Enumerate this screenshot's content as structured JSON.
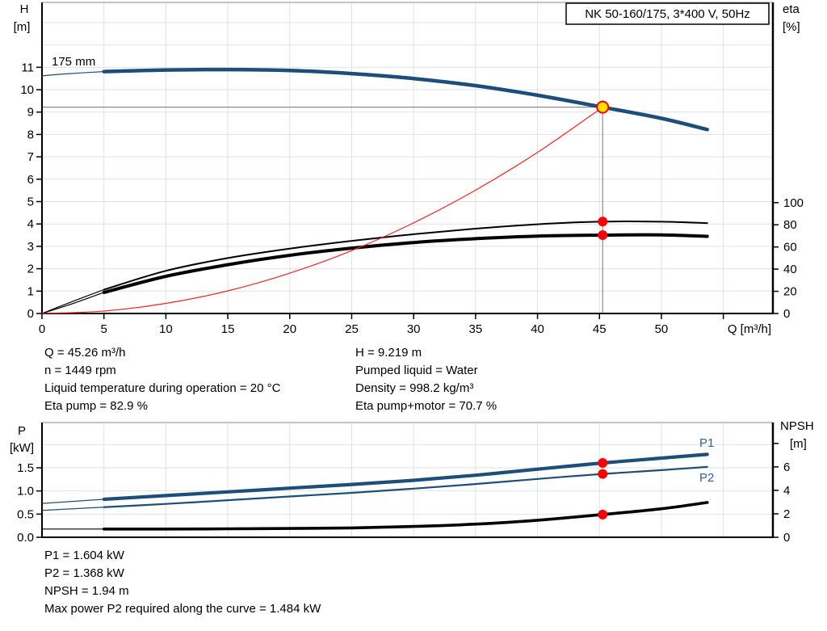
{
  "title_box": "NK 50-160/175, 3*400 V, 50Hz",
  "colors": {
    "blue": "#1c4e7b",
    "black": "#000000",
    "red": "#ff2020",
    "dot_red": "#ff0000",
    "duty_yellow": "#ffe000",
    "duty_gray": "#8c8c8c",
    "grid": "#e2e2e2",
    "axis": "#000000",
    "top_border": "#a0a0a0",
    "label_blue": "#2c5fa5"
  },
  "info": {
    "q": "Q = 45.26 m³/h",
    "n": "n = 1449 rpm",
    "liquid_temp": "Liquid temperature during operation = 20 °C",
    "eta_pump": "Eta pump = 82.9 %",
    "h": "H = 9.219 m",
    "pumped_liquid": "Pumped liquid = Water",
    "density": "Density = 998.2 kg/m³",
    "eta_pump_motor": "Eta pump+motor = 70.7 %",
    "p1": "P1 = 1.604 kW",
    "p2": "P2 = 1.368 kW",
    "npsh": "NPSH = 1.94 m",
    "max_p2": "Max power P2 required along the curve = 1.484 kW"
  },
  "chart_data": [
    {
      "type": "line",
      "title": "NK 50-160/175, 3*400 V, 50Hz",
      "x_axis": {
        "label": "Q [m³/h]",
        "min": 0,
        "max": 59,
        "tick_values": [
          0,
          5,
          10,
          15,
          20,
          25,
          30,
          35,
          40,
          45,
          50,
          55
        ],
        "tick_labels": [
          "0",
          "5",
          "10",
          "15",
          "20",
          "25",
          "30",
          "35",
          "40",
          "45",
          "50",
          ""
        ],
        "grid_values": [
          5,
          10,
          15,
          20,
          25,
          30,
          35,
          40,
          45,
          50,
          55
        ]
      },
      "y_left": {
        "label_lines": [
          "H",
          "[m]"
        ],
        "min": 0,
        "max": 13.9,
        "tick_values": [
          0,
          1,
          2,
          3,
          4,
          5,
          6,
          7,
          8,
          9,
          10,
          11
        ],
        "tick_labels": [
          "0",
          "1",
          "2",
          "3",
          "4",
          "5",
          "6",
          "7",
          "8",
          "9",
          "10",
          "11"
        ],
        "grid_values": [
          1,
          2,
          3,
          4,
          5,
          6,
          7,
          8,
          9,
          10,
          11,
          12,
          13
        ]
      },
      "y_right": {
        "label_lines": [
          "eta",
          "[%]"
        ],
        "min": 0,
        "max": 281,
        "tick_values": [
          0,
          20,
          40,
          60,
          80,
          100
        ],
        "tick_labels": [
          "0",
          "20",
          "40",
          "60",
          "80",
          "100"
        ]
      },
      "series": [
        {
          "name": "pump-head-175mm",
          "label": "175 mm",
          "axis": "H",
          "color": "blue",
          "width": 4.5,
          "thin_lead_until": 5,
          "x": [
            0,
            2,
            5,
            10,
            15,
            20,
            25,
            30,
            35,
            40,
            45.26,
            50,
            53.7
          ],
          "y": [
            10.62,
            10.71,
            10.81,
            10.88,
            10.9,
            10.86,
            10.72,
            10.5,
            10.18,
            9.75,
            9.219,
            8.72,
            8.22
          ]
        },
        {
          "name": "eta-pump",
          "label": "",
          "axis": "eta",
          "color": "black",
          "width": 2,
          "thin_lead_until": 5,
          "x": [
            0,
            2.5,
            5,
            10,
            15,
            20,
            25,
            30,
            35,
            40,
            45.26,
            50,
            53.7
          ],
          "y": [
            0,
            11,
            21.5,
            38.5,
            50,
            58.5,
            65.5,
            71.5,
            76.5,
            80.5,
            82.9,
            82.8,
            81.5
          ]
        },
        {
          "name": "eta-pump-motor",
          "label": "",
          "axis": "eta",
          "color": "black",
          "width": 4,
          "thin_lead_until": 5,
          "x": [
            0,
            2.5,
            5,
            10,
            15,
            20,
            25,
            30,
            35,
            40,
            45.26,
            50,
            53.7
          ],
          "y": [
            0,
            9,
            19,
            33.5,
            44,
            52.5,
            59,
            64,
            67.5,
            69.8,
            70.7,
            70.9,
            69.6
          ]
        },
        {
          "name": "system-curve",
          "label": "",
          "axis": "H",
          "color": "red",
          "width": 1.2,
          "thin_lead_until": 0,
          "x": [
            0,
            5,
            10,
            15,
            20,
            25,
            30,
            35,
            40,
            45.26
          ],
          "y": [
            0,
            0.11,
            0.45,
            1.01,
            1.8,
            2.81,
            4.05,
            5.51,
            7.2,
            9.219
          ]
        }
      ],
      "crosshair": {
        "q": 45.26,
        "h": 9.219
      },
      "markers": [
        {
          "q": 45.26,
          "axis": "H",
          "value": 9.219,
          "style": "duty"
        },
        {
          "q": 45.26,
          "axis": "eta",
          "value": 82.9,
          "style": "dot"
        },
        {
          "q": 45.26,
          "axis": "eta",
          "value": 70.7,
          "style": "dot"
        }
      ]
    },
    {
      "type": "line",
      "title": "",
      "x_axis": {
        "label": "",
        "min": 0,
        "max": 59,
        "tick_values": [],
        "tick_labels": [],
        "grid_values": [
          5,
          10,
          15,
          20,
          25,
          30,
          35,
          40,
          45,
          50,
          55
        ]
      },
      "y_left": {
        "label_lines": [
          "P",
          "[kW]"
        ],
        "min": 0,
        "max": 2.48,
        "tick_values": [
          0,
          0.5,
          1,
          1.5
        ],
        "tick_labels": [
          "0.0",
          "0.5",
          "1.0",
          "1.5"
        ],
        "grid_values": [
          0.5,
          1,
          1.5,
          2
        ]
      },
      "y_right": {
        "label_lines": [
          "NPSH",
          "[m]"
        ],
        "min": 0,
        "max": 9.8,
        "tick_values": [
          0,
          2,
          4,
          6,
          8
        ],
        "tick_labels": [
          "0",
          "2",
          "4",
          "6",
          ""
        ]
      },
      "series": [
        {
          "name": "p1-power",
          "label": "P1",
          "axis": "P",
          "color": "blue",
          "width": 4.2,
          "thin_lead_until": 5,
          "x": [
            0,
            5,
            10,
            15,
            20,
            25,
            30,
            35,
            40,
            45.26,
            50,
            53.7
          ],
          "y": [
            0.73,
            0.82,
            0.9,
            0.98,
            1.06,
            1.14,
            1.23,
            1.34,
            1.47,
            1.604,
            1.71,
            1.79
          ]
        },
        {
          "name": "p2-power",
          "label": "P2",
          "axis": "P",
          "color": "blue",
          "width": 2.2,
          "thin_lead_until": 5,
          "x": [
            0,
            5,
            10,
            15,
            20,
            25,
            30,
            35,
            40,
            45.26,
            50,
            53.7
          ],
          "y": [
            0.58,
            0.65,
            0.72,
            0.8,
            0.88,
            0.96,
            1.05,
            1.15,
            1.26,
            1.368,
            1.45,
            1.52
          ]
        },
        {
          "name": "npsh-curve",
          "label": "",
          "axis": "NPSH",
          "color": "black",
          "width": 3.6,
          "thin_lead_until": 5,
          "x": [
            0,
            5,
            10,
            15,
            20,
            25,
            30,
            35,
            40,
            45.26,
            50,
            53.7
          ],
          "y": [
            0.7,
            0.7,
            0.7,
            0.72,
            0.75,
            0.8,
            0.92,
            1.12,
            1.45,
            1.94,
            2.43,
            2.97
          ]
        }
      ],
      "markers": [
        {
          "q": 45.26,
          "axis": "P",
          "value": 1.604,
          "style": "dot"
        },
        {
          "q": 45.26,
          "axis": "P",
          "value": 1.368,
          "style": "dot"
        },
        {
          "q": 45.26,
          "axis": "NPSH",
          "value": 1.94,
          "style": "dot"
        }
      ],
      "duty_point": {
        "Q": 45.26,
        "H": 9.219,
        "eta_pump": 82.9,
        "eta_pump_motor": 70.7,
        "P1": 1.604,
        "P2": 1.368,
        "NPSH": 1.94
      }
    }
  ]
}
